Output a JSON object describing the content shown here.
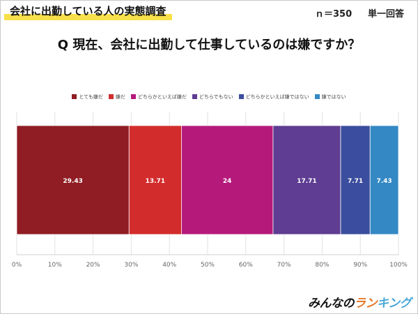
{
  "header": {
    "survey_title": "会社に出勤している人の実態調査",
    "sample_size": "ｎ＝350",
    "answer_type": "単一回答"
  },
  "question": "Q 現在、会社に出勤して仕事しているのは嫌ですか？",
  "brand": {
    "part1": "みんなの",
    "part2": "ラン",
    "part3": "キング"
  },
  "chart_data": {
    "type": "bar",
    "orientation": "horizontal-stacked-100",
    "series": [
      {
        "name": "とても嫌だ",
        "value": 29.43,
        "color": "#8f1d23"
      },
      {
        "name": "嫌だ",
        "value": 13.71,
        "color": "#d32c2c"
      },
      {
        "name": "どちらかといえば嫌だ",
        "value": 24,
        "color": "#b51a7b"
      },
      {
        "name": "どちらでもない",
        "value": 17.71,
        "color": "#5e3d93"
      },
      {
        "name": "どちらかといえば嫌ではない",
        "value": 7.71,
        "color": "#3b4d9e"
      },
      {
        "name": "嫌ではない",
        "value": 7.43,
        "color": "#3488c4"
      }
    ],
    "xlim": [
      0,
      100
    ],
    "x_ticks": [
      "0%",
      "10%",
      "20%",
      "30%",
      "40%",
      "50%",
      "60%",
      "70%",
      "80%",
      "90%",
      "100%"
    ],
    "grid": true,
    "legend_position": "top"
  }
}
